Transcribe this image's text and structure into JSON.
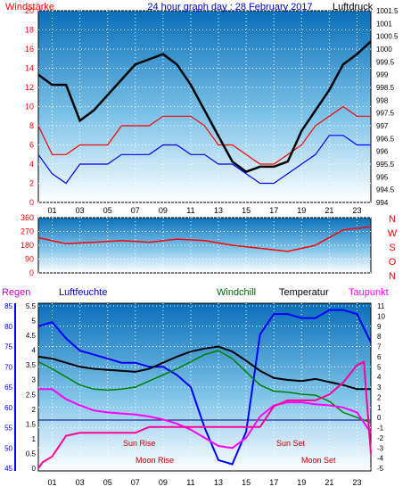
{
  "chart_data": [
    {
      "type": "line",
      "title": "24 hour graph day : 28 February 2017",
      "left_axis_label": "Windstärke",
      "right_axis_label": "Luftdruck",
      "hour_ticks": [
        "01",
        "03",
        "05",
        "07",
        "09",
        "11",
        "13",
        "15",
        "17",
        "19",
        "21",
        "23"
      ],
      "left_ticks": [
        "0",
        "2",
        "4",
        "6",
        "8",
        "10",
        "12",
        "14",
        "16",
        "18",
        "20"
      ],
      "right_ticks": [
        "994",
        "994.5",
        "995",
        "995.5",
        "996",
        "996.5",
        "997",
        "997.5",
        "998",
        "998.5",
        "999",
        "999.5",
        "1000",
        "1000.5",
        "1001",
        "1001.5"
      ],
      "left_range": [
        0,
        20
      ],
      "right_range": [
        994,
        1001.5
      ],
      "series": [
        {
          "color": "#ff0000",
          "hours": [
            0,
            1,
            2,
            3,
            4,
            5,
            6,
            7,
            8,
            9,
            10,
            11,
            12,
            13,
            14,
            15,
            16,
            17,
            18,
            19,
            20,
            21,
            22,
            23,
            24
          ],
          "values": [
            8,
            5,
            5,
            6,
            6,
            6,
            8,
            8,
            8,
            9,
            9,
            9,
            8,
            6,
            6,
            5,
            4,
            4,
            5,
            6,
            8,
            9,
            10,
            9,
            9
          ]
        },
        {
          "color": "#0000ff",
          "hours": [
            0,
            1,
            2,
            3,
            4,
            5,
            6,
            7,
            8,
            9,
            10,
            11,
            12,
            13,
            14,
            15,
            16,
            17,
            18,
            19,
            20,
            21,
            22,
            23,
            24
          ],
          "values": [
            5,
            3,
            2,
            4,
            4,
            4,
            5,
            5,
            5,
            6,
            6,
            5,
            5,
            4,
            4,
            3,
            2,
            2,
            3,
            4,
            5,
            7,
            7,
            6,
            6
          ]
        },
        {
          "color": "#000000",
          "hours": [
            0,
            1,
            2,
            3,
            4,
            5,
            6,
            7,
            8,
            9,
            10,
            11,
            12,
            13,
            14,
            15,
            16,
            17,
            18,
            19,
            20,
            21,
            22,
            23,
            24
          ],
          "values": [
            999,
            998.6,
            998.6,
            997.2,
            997.6,
            998.2,
            998.8,
            999.4,
            999.6,
            999.8,
            999.4,
            998.6,
            997.6,
            996.6,
            995.6,
            995.2,
            995.4,
            995.4,
            995.6,
            996.8,
            997.6,
            998.4,
            999.4,
            999.8,
            1000.3
          ]
        }
      ]
    },
    {
      "type": "line",
      "left_ticks": [
        "0",
        "90",
        "180",
        "270",
        "360"
      ],
      "right_labels": [
        "N",
        "W",
        "S",
        "O",
        "N"
      ],
      "left_range": [
        0,
        360
      ],
      "series": [
        {
          "color": "#ff0000",
          "hours": [
            0,
            2,
            4,
            6,
            8,
            10,
            12,
            14,
            16,
            18,
            20,
            22,
            24
          ],
          "values": [
            230,
            190,
            200,
            210,
            200,
            220,
            210,
            180,
            160,
            140,
            180,
            280,
            300
          ]
        }
      ]
    },
    {
      "type": "line",
      "header_labels": {
        "regen": "Regen",
        "luftfeuchte": "Luftfeuchte",
        "windchill": "Windchill",
        "temperatur": "Temperatur",
        "taupunkt": "Taupunkt"
      },
      "humidity_ticks": [
        "45",
        "50",
        "55",
        "60",
        "65",
        "70",
        "75",
        "80",
        "85"
      ],
      "rain_ticks": [
        "0",
        "0.5",
        "1",
        "1.5",
        "2",
        "2.5",
        "3",
        "3.5",
        "4",
        "4.5",
        "5",
        "5.5"
      ],
      "temp_ticks": [
        "-5",
        "-4",
        "-3",
        "-2",
        "-1",
        "0",
        "1",
        "2",
        "3",
        "4",
        "5",
        "6",
        "7",
        "8",
        "9",
        "10",
        "11"
      ],
      "humidity_range": [
        45,
        85
      ],
      "temp_range": [
        -5,
        11
      ],
      "annotations": {
        "sun_rise": "Sun Rise",
        "sun_set": "Sun Set",
        "moon_rise": "Moon Rise",
        "moon_set": "Moon Set"
      },
      "series": [
        {
          "color": "#0000ff",
          "hours": [
            0,
            1,
            2,
            3,
            4,
            5,
            6,
            7,
            8,
            9,
            10,
            11,
            12,
            13,
            14,
            15,
            16,
            17,
            18,
            19,
            20,
            21,
            22,
            23,
            24
          ],
          "values": [
            80,
            81,
            77,
            74,
            73,
            72,
            71,
            71,
            70,
            70,
            68,
            65,
            55,
            47,
            46,
            54,
            78,
            83,
            83,
            82,
            82,
            84,
            84,
            83,
            76
          ]
        },
        {
          "color": "#000000",
          "hours": [
            0,
            1,
            2,
            3,
            4,
            5,
            6,
            7,
            8,
            9,
            10,
            11,
            12,
            13,
            14,
            15,
            16,
            17,
            18,
            19,
            20,
            21,
            22,
            23,
            24
          ],
          "values": [
            6,
            5.8,
            5.4,
            5,
            4.8,
            4.7,
            4.6,
            4.5,
            4.8,
            5.4,
            6,
            6.5,
            6.8,
            7,
            6.5,
            5.6,
            4.6,
            3.9,
            3.7,
            3.6,
            3.8,
            3.5,
            3.2,
            2.8,
            2.8
          ]
        },
        {
          "color": "#008000",
          "hours": [
            0,
            1,
            2,
            3,
            4,
            5,
            6,
            7,
            8,
            9,
            10,
            11,
            12,
            13,
            14,
            15,
            16,
            17,
            18,
            19,
            20,
            21,
            22,
            23,
            24
          ],
          "values": [
            5.5,
            4.8,
            4,
            3.2,
            2.8,
            2.7,
            2.8,
            3,
            3.6,
            4.2,
            4.8,
            5.5,
            6.2,
            6.6,
            5.8,
            4.5,
            3.2,
            2.6,
            2.5,
            2.3,
            2.2,
            1.6,
            0.5,
            0,
            -0.5
          ]
        },
        {
          "color": "#ff00ff",
          "hours": [
            0,
            1,
            2,
            3,
            4,
            5,
            6,
            7,
            8,
            9,
            10,
            11,
            12,
            13,
            14,
            15,
            16,
            17,
            18,
            19,
            20,
            21,
            22,
            23,
            24
          ],
          "values": [
            2.8,
            2.8,
            1.8,
            1.2,
            0.7,
            0.5,
            0.4,
            0.3,
            0.1,
            -0.2,
            -0.6,
            -1.2,
            -2,
            -2.8,
            -3,
            -2,
            0.1,
            1.2,
            1.5,
            1.5,
            1.3,
            1.2,
            1,
            0.5,
            -1.5
          ]
        },
        {
          "color": "#ff0099",
          "hours": [
            0,
            0.3,
            1,
            2,
            3,
            4,
            5,
            6,
            7,
            8,
            9,
            10,
            11,
            12,
            13,
            14,
            15,
            16,
            17,
            18,
            19,
            20,
            21,
            22,
            23,
            23.5,
            24
          ],
          "values": [
            0,
            0.2,
            0.4,
            1.1,
            1.2,
            1.2,
            1.2,
            1.2,
            1.2,
            1.4,
            1.4,
            1.4,
            1.4,
            1.4,
            1.4,
            1.4,
            1.4,
            1.4,
            2.1,
            2.3,
            2.3,
            2.3,
            2.5,
            2.9,
            3.5,
            3.6,
            0.5
          ]
        }
      ]
    }
  ]
}
